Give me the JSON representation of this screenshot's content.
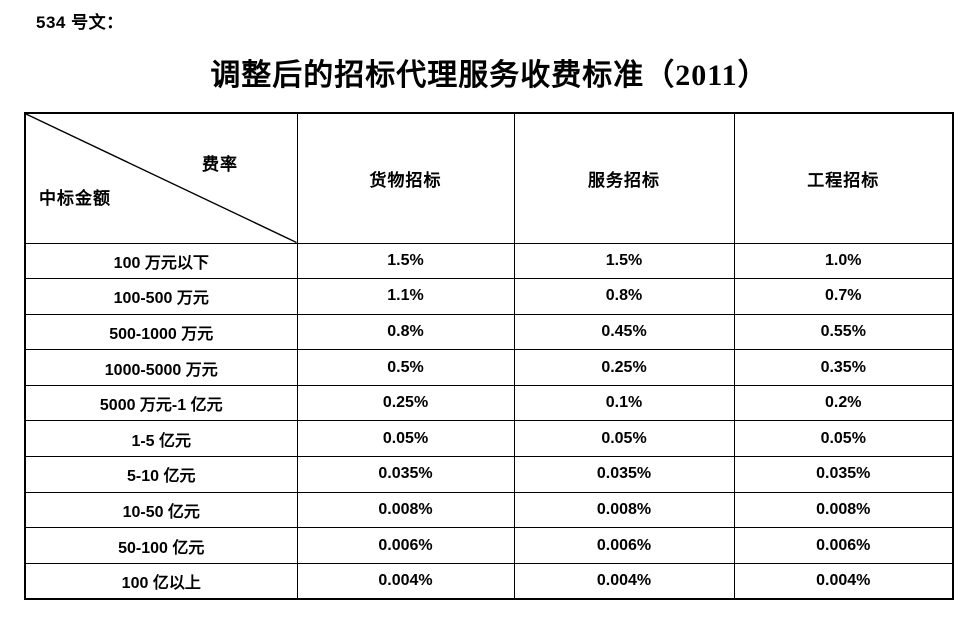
{
  "page": {
    "doc_label": "534 号文：",
    "title": "调整后的招标代理服务收费标准（2011）"
  },
  "table": {
    "corner": {
      "rate_label": "费率",
      "amount_label": "中标金额"
    },
    "columns": [
      "货物招标",
      "服务招标",
      "工程招标"
    ],
    "rows": [
      {
        "amount": "100 万元以下",
        "values": [
          "1.5%",
          "1.5%",
          "1.0%"
        ]
      },
      {
        "amount": "100-500 万元",
        "values": [
          "1.1%",
          "0.8%",
          "0.7%"
        ]
      },
      {
        "amount": "500-1000 万元",
        "values": [
          "0.8%",
          "0.45%",
          "0.55%"
        ]
      },
      {
        "amount": "1000-5000 万元",
        "values": [
          "0.5%",
          "0.25%",
          "0.35%"
        ]
      },
      {
        "amount": "5000 万元-1 亿元",
        "values": [
          "0.25%",
          "0.1%",
          "0.2%"
        ]
      },
      {
        "amount": "1-5 亿元",
        "values": [
          "0.05%",
          "0.05%",
          "0.05%"
        ]
      },
      {
        "amount": "5-10 亿元",
        "values": [
          "0.035%",
          "0.035%",
          "0.035%"
        ]
      },
      {
        "amount": "10-50 亿元",
        "values": [
          "0.008%",
          "0.008%",
          "0.008%"
        ]
      },
      {
        "amount": "50-100 亿元",
        "values": [
          "0.006%",
          "0.006%",
          "0.006%"
        ]
      },
      {
        "amount": "100 亿以上",
        "values": [
          "0.004%",
          "0.004%",
          "0.004%"
        ]
      }
    ],
    "colors": {
      "border": "#000000",
      "text": "#000000",
      "background": "#ffffff"
    }
  }
}
